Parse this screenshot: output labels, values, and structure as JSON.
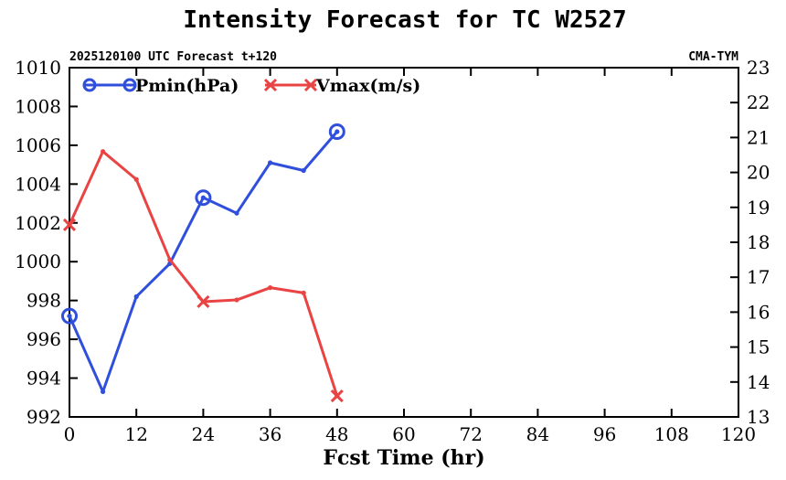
{
  "chart_data": {
    "type": "line",
    "title": "Intensity Forecast for TC W2527",
    "subtitle_left": "2025120100 UTC Forecast t+120",
    "subtitle_right": "CMA-TYM",
    "xlabel": "Fcst Time (hr)",
    "xlim": [
      0,
      120
    ],
    "xticks": [
      "0",
      "12",
      "24",
      "36",
      "48",
      "60",
      "72",
      "84",
      "96",
      "108",
      "120"
    ],
    "xtick_values": [
      0,
      12,
      24,
      36,
      48,
      60,
      72,
      84,
      96,
      108,
      120
    ],
    "y_left": {
      "ylim": [
        992,
        1010
      ],
      "ticks": [
        "992",
        "994",
        "996",
        "998",
        "1000",
        "1002",
        "1004",
        "1006",
        "1008",
        "1010"
      ],
      "tick_values": [
        992,
        994,
        996,
        998,
        1000,
        1002,
        1004,
        1006,
        1008,
        1010
      ]
    },
    "y_right": {
      "ylim": [
        13,
        23
      ],
      "ticks": [
        "13",
        "14",
        "15",
        "16",
        "17",
        "18",
        "19",
        "20",
        "21",
        "22",
        "23"
      ],
      "tick_values": [
        13,
        14,
        15,
        16,
        17,
        18,
        19,
        20,
        21,
        22,
        23
      ]
    },
    "x": [
      0,
      6,
      12,
      18,
      24,
      30,
      36,
      42,
      48
    ],
    "series": [
      {
        "name": "Pmin(hPa)",
        "axis": "left",
        "color": "#2f4fdc",
        "marker": "circle",
        "marker_every": 4,
        "values": [
          997.2,
          993.3,
          998.2,
          999.9,
          1003.3,
          1002.5,
          1005.1,
          1004.7,
          1006.7
        ]
      },
      {
        "name": "Vmax(m/s)",
        "axis": "right",
        "color": "#e94343",
        "marker": "x",
        "marker_every": 4,
        "values": [
          18.5,
          20.6,
          19.8,
          17.5,
          16.3,
          16.35,
          16.7,
          16.55,
          13.6
        ]
      }
    ]
  }
}
